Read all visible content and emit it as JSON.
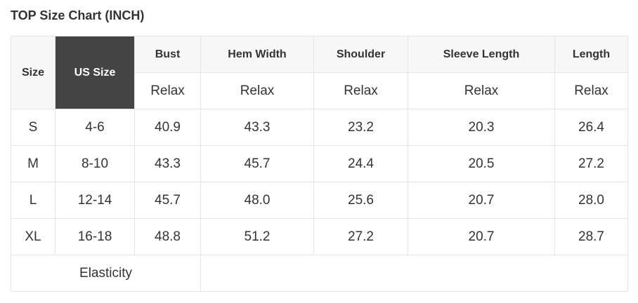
{
  "title": "TOP Size Chart (INCH)",
  "header": {
    "size": "Size",
    "us_size": "US Size",
    "columns": [
      "Bust",
      "Hem Width",
      "Shoulder",
      "Sleeve Length",
      "Length"
    ],
    "fit": [
      "Relax",
      "Relax",
      "Relax",
      "Relax",
      "Relax"
    ]
  },
  "rows": [
    [
      "S",
      "4-6",
      "40.9",
      "43.3",
      "23.2",
      "20.3",
      "26.4"
    ],
    [
      "M",
      "8-10",
      "43.3",
      "45.7",
      "24.4",
      "20.5",
      "27.2"
    ],
    [
      "L",
      "12-14",
      "45.7",
      "48.0",
      "25.6",
      "20.7",
      "28.0"
    ],
    [
      "XL",
      "16-18",
      "48.8",
      "51.2",
      "27.2",
      "20.7",
      "28.7"
    ]
  ],
  "elasticity_label": "Elasticity",
  "elasticity_value": "",
  "colors": {
    "header_bg": "#f7f7f7",
    "us_size_bg": "#444444",
    "border": "#e5e5e5",
    "text": "#333333"
  }
}
